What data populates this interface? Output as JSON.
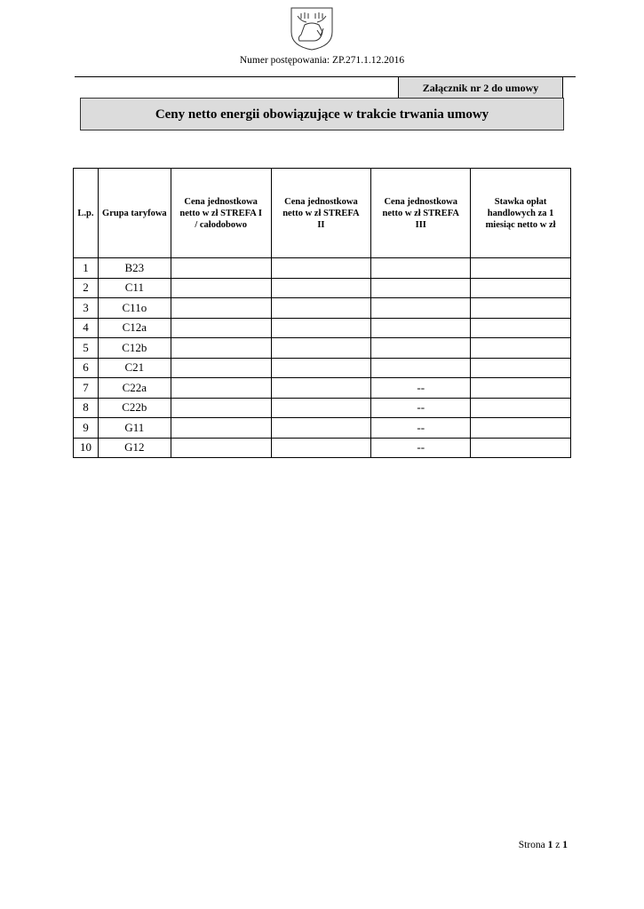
{
  "header": {
    "procedure_number": "Numer postępowania: ZP.271.1.12.2016",
    "logo": "moose-coat-of-arms"
  },
  "annex": "Załącznik nr 2 do umowy",
  "title": "Ceny netto energii obowiązujące w trakcie trwania umowy",
  "table": {
    "columns": [
      "L.p.",
      "Grupa taryfowa",
      "Cena jednostkowa netto w zł STREFA I / całodobowo",
      "Cena jednostkowa netto w zł STREFA II",
      "Cena jednostkowa netto w zł STREFA III",
      "Stawka opłat handlowych za 1 miesiąc netto w zł"
    ],
    "rows": [
      [
        "1",
        "B23",
        "",
        "",
        "",
        ""
      ],
      [
        "2",
        "C11",
        "",
        "",
        "",
        ""
      ],
      [
        "3",
        "C11o",
        "",
        "",
        "",
        ""
      ],
      [
        "4",
        "C12a",
        "",
        "",
        "",
        ""
      ],
      [
        "5",
        "C12b",
        "",
        "",
        "",
        ""
      ],
      [
        "6",
        "C21",
        "",
        "",
        "",
        ""
      ],
      [
        "7",
        "C22a",
        "",
        "",
        "--",
        ""
      ],
      [
        "8",
        "C22b",
        "",
        "",
        "--",
        ""
      ],
      [
        "9",
        "G11",
        "",
        "",
        "--",
        ""
      ],
      [
        "10",
        "G12",
        "",
        "",
        "--",
        ""
      ]
    ]
  },
  "footer": {
    "prefix": "Strona ",
    "page": "1",
    "mid": " z ",
    "total": "1"
  }
}
